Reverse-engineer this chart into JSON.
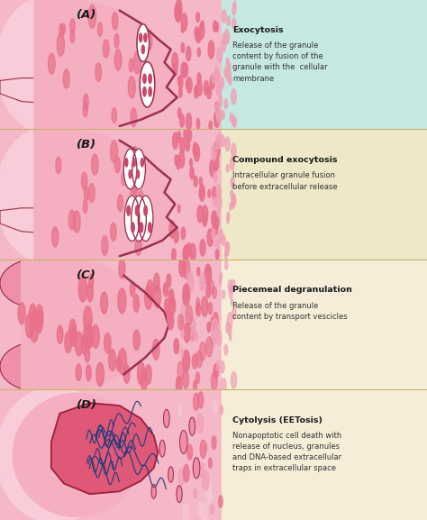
{
  "panels": [
    {
      "label": "A",
      "bg_left": "#f4b8c8",
      "bg_right": "#c5e8e2",
      "title": "Exocytosis",
      "text": "Release of the granule\ncontent by fusion of the\ngranule with the  cellular\nmembrane",
      "type": "exocytosis"
    },
    {
      "label": "B",
      "bg_left": "#f4b8c8",
      "bg_right": "#eee8c8",
      "title": "Compound exocytosis",
      "text": "Intracellular granule fusion\nbefore extracellular release",
      "type": "compound"
    },
    {
      "label": "C",
      "bg_left": "#f4b8c8",
      "bg_right": "#f5edd8",
      "title": "Piecemeal degranulation",
      "text": "Release of the granule\ncontent by transport vescicles",
      "type": "piecemeal"
    },
    {
      "label": "D",
      "bg_left": "#f4b8c8",
      "bg_right": "#f5edd8",
      "title": "Cytolysis (EETosis)",
      "text": "Nonapoptotic cell death with\nrelease of nucleus, granules\nand DNA-based extracellular\ntraps in extracellular space",
      "type": "cytolysis"
    }
  ],
  "cell_outer": "#f090a8",
  "cell_inner": "#f4b0c0",
  "cell_light": "#f8ccd8",
  "cell_cytoplasm": "#ee94aa",
  "cell_border": "#9c3050",
  "granule_white": "#ffffff",
  "granule_dot": "#c84868",
  "dot_dense": "#e8708a",
  "dot_light": "#f0a0b4",
  "dot_lighter": "#f8c8d4",
  "label_color": "#1a1a1a",
  "title_color": "#1a1a1a",
  "text_color": "#333333",
  "sep_color": "#c8b060",
  "dna_color": "#1a3a7a",
  "nucleus_color": "#e05878",
  "nucleus_border": "#9c2040"
}
